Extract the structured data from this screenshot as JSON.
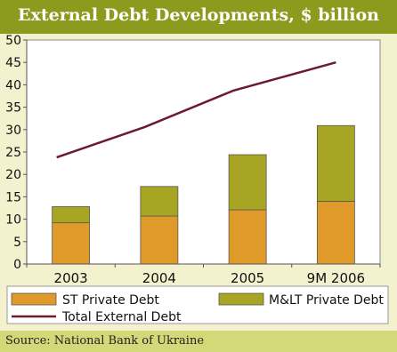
{
  "title": "External Debt Developments, $ billion",
  "source": "Source: National Bank of Ukraine",
  "chart_data": {
    "type": "bar",
    "stacked": true,
    "categories": [
      "2003",
      "2004",
      "2005",
      "9M 2006"
    ],
    "series": [
      {
        "name": "ST Private Debt",
        "type": "bar",
        "color": "#e09a2a",
        "values": [
          9.2,
          10.7,
          12.1,
          14.0
        ]
      },
      {
        "name": "M&LT Private Debt",
        "type": "bar",
        "color": "#a9a524",
        "values": [
          3.6,
          6.6,
          12.3,
          16.9
        ]
      },
      {
        "name": "Total External Debt",
        "type": "line",
        "color": "#6e1a2e",
        "values": [
          23.8,
          30.6,
          38.7,
          45.0
        ]
      }
    ],
    "yticks": [
      0,
      5,
      10,
      15,
      20,
      25,
      30,
      35,
      40,
      45,
      50
    ],
    "ylim": [
      0,
      50
    ],
    "legend_position": "bottom"
  }
}
